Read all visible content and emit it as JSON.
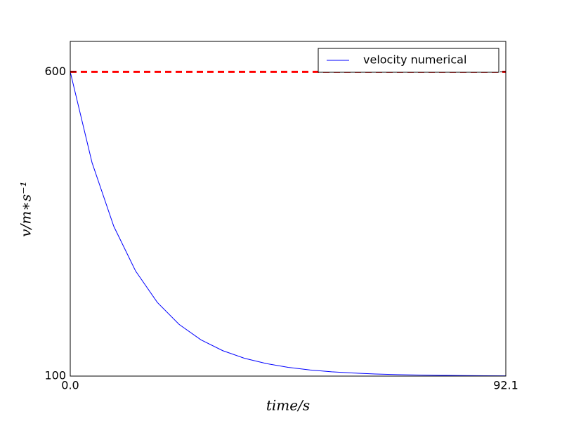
{
  "chart_data": {
    "type": "line",
    "xlabel": "time/s",
    "ylabel": "v/m∗s⁻¹",
    "x": [
      0,
      4.61,
      9.21,
      13.82,
      18.42,
      23.03,
      27.63,
      32.24,
      36.84,
      41.45,
      46.05,
      50.66,
      55.26,
      59.87,
      64.47,
      69.08,
      73.68,
      78.29,
      82.89,
      87.5,
      92.1
    ],
    "series": [
      {
        "name": "velocity numerical",
        "color": "#0000ff",
        "values": [
          600,
          450.7,
          346,
          272.6,
          221,
          184.9,
          159.6,
          141.8,
          129.3,
          120.6,
          114.4,
          110.1,
          107.1,
          105,
          103.5,
          102.5,
          101.7,
          101.2,
          100.8,
          100.6,
          100.4
        ]
      }
    ],
    "hlines": [
      {
        "value": 600,
        "color": "#ff0000",
        "style": "dashed"
      }
    ],
    "xlim": [
      0,
      92.1
    ],
    "ylim": [
      100,
      650
    ],
    "xticks": [
      {
        "value": 0,
        "label": "0.0"
      },
      92.1
    ],
    "yticks": [
      100,
      600
    ],
    "grid": false,
    "legend": "upper right"
  }
}
